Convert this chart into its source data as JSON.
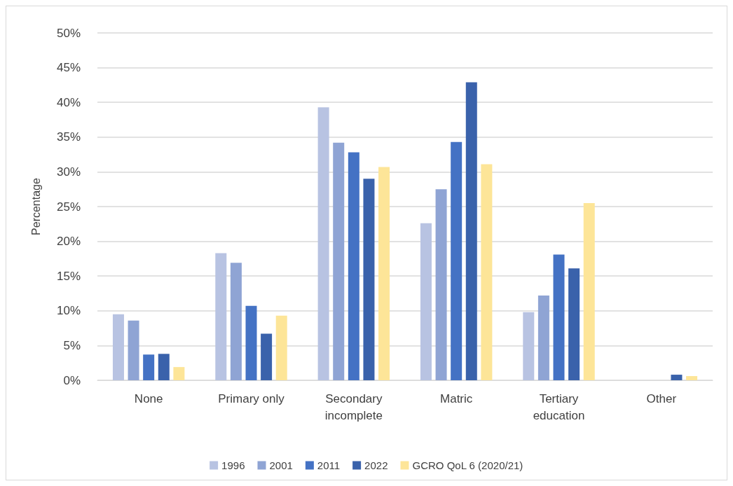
{
  "chart_data": {
    "type": "bar",
    "ylabel": "Percentage",
    "categories": [
      "None",
      "Primary only",
      "Secondary\nincomplete",
      "Matric",
      "Tertiary\neducation",
      "Other"
    ],
    "series": [
      {
        "name": "1996",
        "color": "#b8c3e2",
        "values": [
          9.5,
          18.3,
          39.3,
          22.6,
          9.8,
          null
        ]
      },
      {
        "name": "2001",
        "color": "#8fa4d4",
        "values": [
          8.6,
          16.9,
          34.2,
          27.5,
          12.2,
          null
        ]
      },
      {
        "name": "2011",
        "color": "#4472c4",
        "values": [
          3.7,
          10.7,
          32.8,
          34.3,
          18.1,
          null
        ]
      },
      {
        "name": "2022",
        "color": "#3a62ab",
        "values": [
          3.8,
          6.7,
          29.0,
          42.9,
          16.1,
          0.8
        ]
      },
      {
        "name": "GCRO QoL 6 (2020/21)",
        "color": "#fde598",
        "values": [
          1.9,
          9.3,
          30.7,
          31.1,
          25.5,
          0.6
        ]
      }
    ],
    "ylim": [
      0,
      50
    ],
    "yticks": [
      {
        "value": 0,
        "label": "0%"
      },
      {
        "value": 5,
        "label": "5%"
      },
      {
        "value": 10,
        "label": "10%"
      },
      {
        "value": 15,
        "label": "15%"
      },
      {
        "value": 20,
        "label": "20%"
      },
      {
        "value": 25,
        "label": "25%"
      },
      {
        "value": 30,
        "label": "30%"
      },
      {
        "value": 35,
        "label": "35%"
      },
      {
        "value": 40,
        "label": "40%"
      },
      {
        "value": 45,
        "label": "45%"
      },
      {
        "value": 50,
        "label": "50%"
      }
    ],
    "grid": "y",
    "legend": "bottom"
  }
}
